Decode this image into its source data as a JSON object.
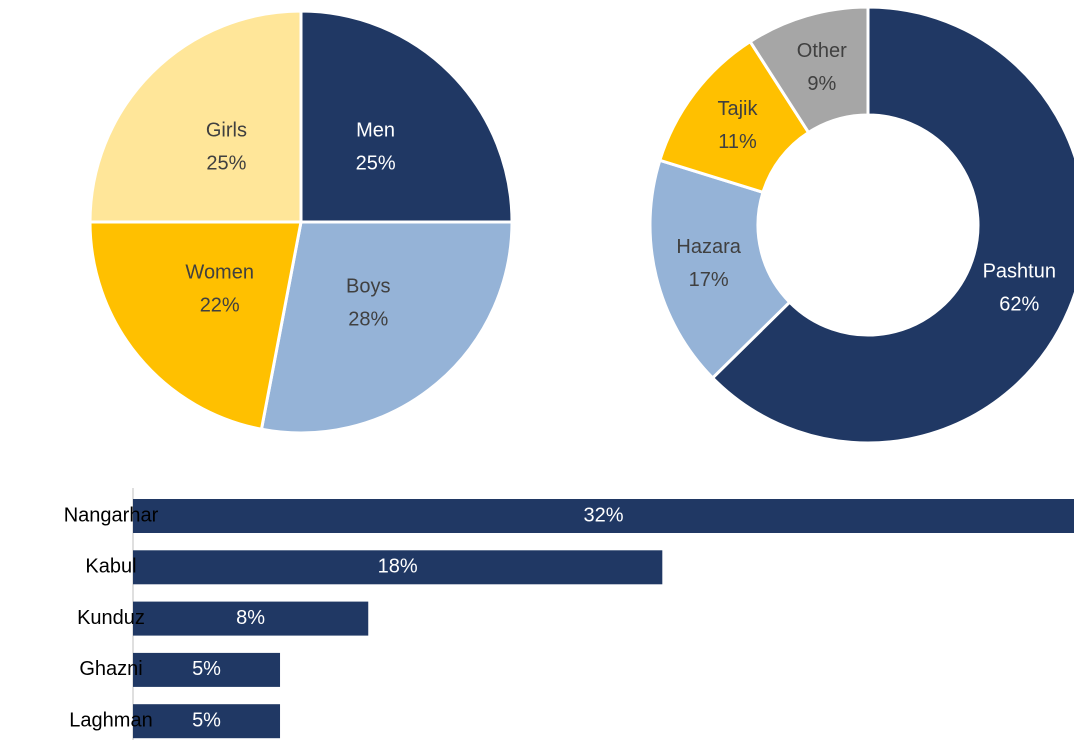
{
  "chart_data": [
    {
      "type": "pie",
      "categories": [
        "Men",
        "Boys",
        "Women",
        "Girls"
      ],
      "values": [
        25,
        28,
        22,
        25
      ],
      "value_labels": [
        "25%",
        "28%",
        "22%",
        "25%"
      ],
      "colors": [
        "#203864",
        "#95b3d7",
        "#ffc000",
        "#ffe699"
      ]
    },
    {
      "type": "donut",
      "categories": [
        "Pashtun",
        "Hazara",
        "Tajik",
        "Other"
      ],
      "values": [
        62,
        17,
        11,
        9
      ],
      "value_labels": [
        "62%",
        "17%",
        "11%",
        "9%"
      ],
      "colors": [
        "#203864",
        "#95b3d7",
        "#ffc000",
        "#a6a6a6"
      ]
    },
    {
      "type": "hbar",
      "categories": [
        "Nangarhar",
        "Kabul",
        "Kunduz",
        "Ghazni",
        "Laghman"
      ],
      "values": [
        32,
        18,
        8,
        5,
        5
      ],
      "value_labels": [
        "32%",
        "18%",
        "8%",
        "5%",
        "5%"
      ],
      "color": "#203864",
      "xlim": [
        0,
        32
      ]
    }
  ]
}
